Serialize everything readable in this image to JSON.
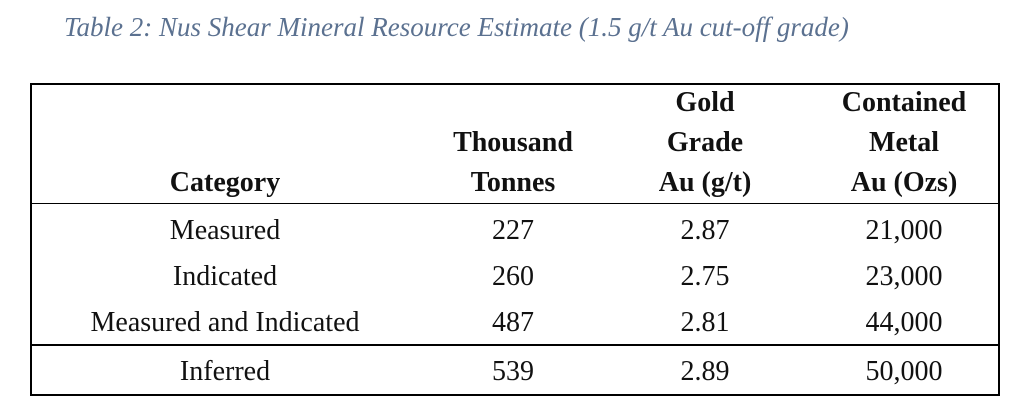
{
  "caption": "Table 2: Nus Shear Mineral Resource Estimate (1.5 g/t Au cut-off grade)",
  "table": {
    "header": [
      [
        "Category"
      ],
      [
        "Thousand",
        "Tonnes"
      ],
      [
        "Gold",
        "Grade",
        "Au (g/t)"
      ],
      [
        "Contained",
        "Metal",
        "Au (Ozs)"
      ]
    ],
    "rows": [
      [
        "Measured",
        "227",
        "2.87",
        "21,000"
      ],
      [
        "Indicated",
        "260",
        "2.75",
        "23,000"
      ],
      [
        "Measured and Indicated",
        "487",
        "2.81",
        "44,000"
      ],
      [
        "Inferred",
        "539",
        "2.89",
        "50,000"
      ]
    ]
  }
}
